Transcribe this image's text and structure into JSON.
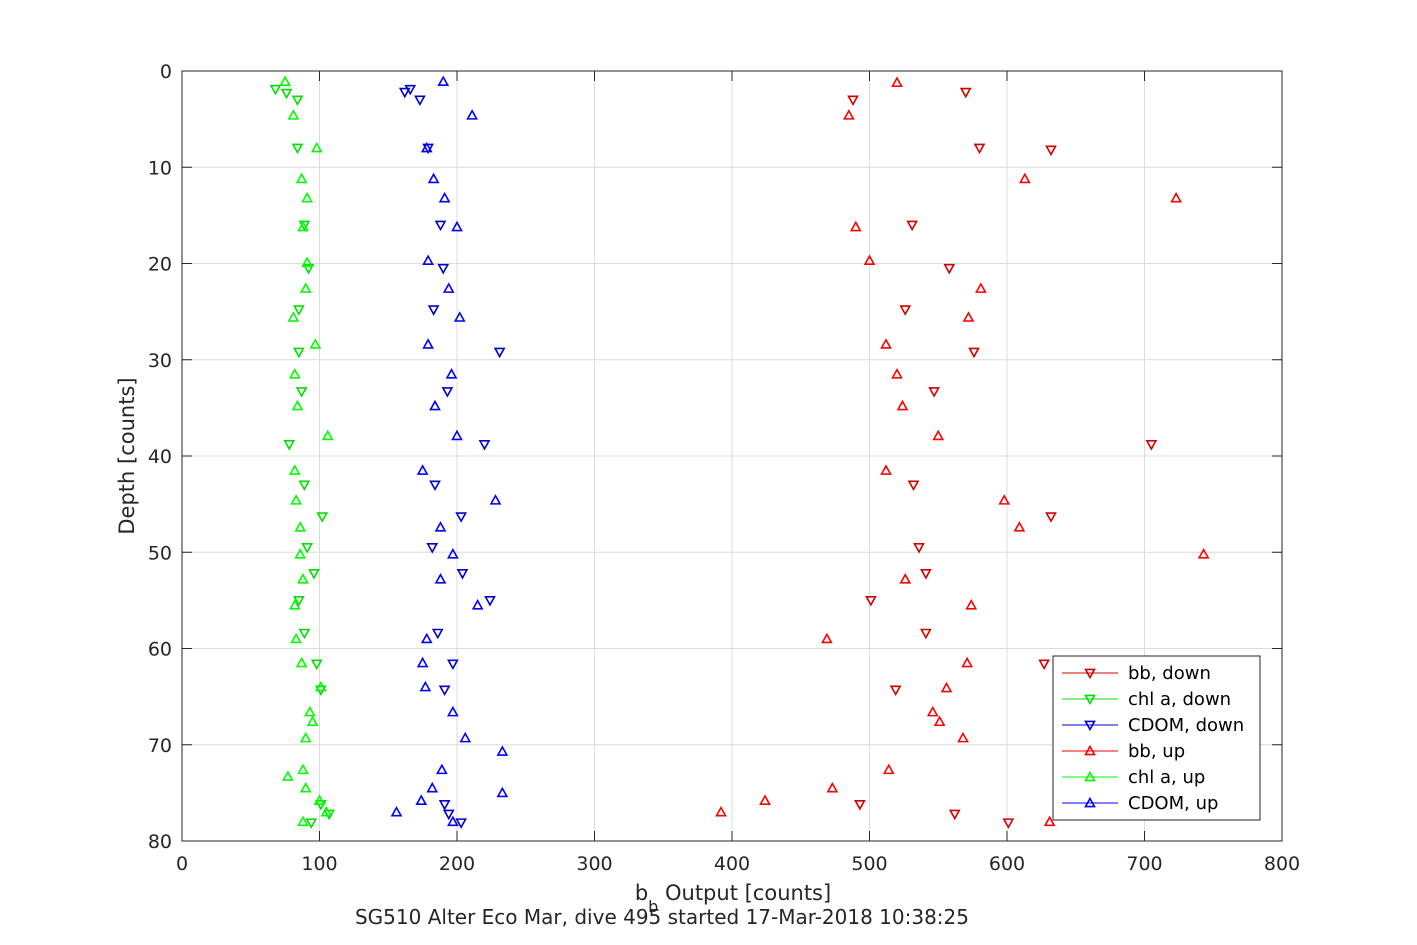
{
  "chart_data": {
    "type": "scatter",
    "title": "",
    "caption": "SG510 Alter Eco Mar, dive 495 started 17-Mar-2018 10:38:25",
    "xlabel_main": "b",
    "xlabel_sub": "b",
    "xlabel_rest": " Output [counts]",
    "ylabel": "Depth [counts]",
    "xlim": [
      0,
      800
    ],
    "ylim": [
      0,
      80
    ],
    "y_reversed": true,
    "grid": true,
    "legend_position": "bottom-right",
    "x_ticks": [
      "0",
      "100",
      "200",
      "300",
      "400",
      "500",
      "600",
      "700",
      "800"
    ],
    "y_ticks": [
      "0",
      "10",
      "20",
      "30",
      "40",
      "50",
      "60",
      "70",
      "80"
    ],
    "series": [
      {
        "name": "bb, down",
        "color": "#d40000",
        "marker": "triangle-down",
        "points": [
          [
            488,
            3
          ],
          [
            570,
            2.2
          ],
          [
            632,
            8.2
          ],
          [
            580,
            8
          ],
          [
            531,
            16
          ],
          [
            558,
            20.5
          ],
          [
            526,
            24.8
          ],
          [
            576,
            29.2
          ],
          [
            547,
            33.3
          ],
          [
            705,
            38.8
          ],
          [
            532,
            43
          ],
          [
            632,
            46.3
          ],
          [
            536,
            49.5
          ],
          [
            541,
            52.2
          ],
          [
            501,
            55
          ],
          [
            541,
            58.4
          ],
          [
            627,
            61.6
          ],
          [
            519,
            64.3
          ],
          [
            493,
            76.2
          ],
          [
            562,
            77.2
          ],
          [
            601,
            78.1
          ]
        ]
      },
      {
        "name": "chl a, down",
        "color": "#00e000",
        "marker": "triangle-down",
        "points": [
          [
            68,
            1.9
          ],
          [
            76,
            2.3
          ],
          [
            84,
            3
          ],
          [
            84,
            8
          ],
          [
            89,
            16
          ],
          [
            92,
            20.5
          ],
          [
            85,
            24.8
          ],
          [
            85,
            29.2
          ],
          [
            87,
            33.3
          ],
          [
            78,
            38.8
          ],
          [
            89,
            43
          ],
          [
            102,
            46.3
          ],
          [
            91,
            49.5
          ],
          [
            96,
            52.2
          ],
          [
            85,
            55
          ],
          [
            89,
            58.4
          ],
          [
            98,
            61.6
          ],
          [
            101,
            64.3
          ],
          [
            101,
            76.2
          ],
          [
            107,
            77.2
          ],
          [
            94,
            78.1
          ]
        ]
      },
      {
        "name": "CDOM, down",
        "color": "#0000d0",
        "marker": "triangle-down",
        "points": [
          [
            162,
            2.2
          ],
          [
            166,
            1.9
          ],
          [
            173,
            3
          ],
          [
            179,
            8
          ],
          [
            188,
            16
          ],
          [
            190,
            20.5
          ],
          [
            183,
            24.8
          ],
          [
            231,
            29.2
          ],
          [
            193,
            33.3
          ],
          [
            220,
            38.8
          ],
          [
            184,
            43
          ],
          [
            203,
            46.3
          ],
          [
            182,
            49.5
          ],
          [
            204,
            52.2
          ],
          [
            224,
            55
          ],
          [
            186,
            58.4
          ],
          [
            197,
            61.6
          ],
          [
            191,
            64.3
          ],
          [
            191,
            76.2
          ],
          [
            194,
            77.2
          ],
          [
            203,
            78.1
          ]
        ]
      },
      {
        "name": "bb, up",
        "color": "#ff0000",
        "marker": "triangle-up",
        "points": [
          [
            520,
            1.2
          ],
          [
            485,
            4.6
          ],
          [
            613,
            11.2
          ],
          [
            723,
            13.2
          ],
          [
            490,
            16.2
          ],
          [
            500,
            19.7
          ],
          [
            581,
            22.6
          ],
          [
            572,
            25.6
          ],
          [
            512,
            28.4
          ],
          [
            520,
            31.5
          ],
          [
            524,
            34.8
          ],
          [
            550,
            37.9
          ],
          [
            512,
            41.5
          ],
          [
            598,
            44.6
          ],
          [
            609,
            47.4
          ],
          [
            743,
            50.2
          ],
          [
            526,
            52.8
          ],
          [
            574,
            55.5
          ],
          [
            469,
            59
          ],
          [
            571,
            61.5
          ],
          [
            556,
            64.1
          ],
          [
            546,
            66.6
          ],
          [
            551,
            67.6
          ],
          [
            568,
            69.3
          ],
          [
            514,
            72.6
          ],
          [
            473,
            74.5
          ],
          [
            424,
            75.8
          ],
          [
            392,
            77
          ],
          [
            631,
            78
          ]
        ]
      },
      {
        "name": "chl a, up",
        "color": "#00ff00",
        "marker": "triangle-up",
        "points": [
          [
            75,
            1.1
          ],
          [
            81,
            4.6
          ],
          [
            98,
            8
          ],
          [
            87,
            11.2
          ],
          [
            91,
            13.2
          ],
          [
            88,
            16.2
          ],
          [
            91,
            19.9
          ],
          [
            90,
            22.6
          ],
          [
            81,
            25.6
          ],
          [
            97,
            28.4
          ],
          [
            82,
            31.5
          ],
          [
            84,
            34.8
          ],
          [
            106,
            37.9
          ],
          [
            82,
            41.5
          ],
          [
            83,
            44.6
          ],
          [
            86,
            47.4
          ],
          [
            86,
            50.2
          ],
          [
            88,
            52.8
          ],
          [
            82,
            55.5
          ],
          [
            83,
            59
          ],
          [
            87,
            61.5
          ],
          [
            101,
            64
          ],
          [
            93,
            66.6
          ],
          [
            95,
            67.6
          ],
          [
            90,
            69.3
          ],
          [
            88,
            72.6
          ],
          [
            77,
            73.3
          ],
          [
            90,
            74.5
          ],
          [
            100,
            75.8
          ],
          [
            105,
            77
          ],
          [
            88,
            78
          ]
        ]
      },
      {
        "name": "CDOM, up",
        "color": "#0000ff",
        "marker": "triangle-up",
        "points": [
          [
            190,
            1.1
          ],
          [
            211,
            4.6
          ],
          [
            178,
            8
          ],
          [
            183,
            11.2
          ],
          [
            191,
            13.2
          ],
          [
            200,
            16.2
          ],
          [
            179,
            19.7
          ],
          [
            194,
            22.6
          ],
          [
            202,
            25.6
          ],
          [
            179,
            28.4
          ],
          [
            196,
            31.5
          ],
          [
            184,
            34.8
          ],
          [
            200,
            37.9
          ],
          [
            175,
            41.5
          ],
          [
            228,
            44.6
          ],
          [
            188,
            47.4
          ],
          [
            197,
            50.2
          ],
          [
            188,
            52.8
          ],
          [
            215,
            55.5
          ],
          [
            178,
            59
          ],
          [
            175,
            61.5
          ],
          [
            177,
            64
          ],
          [
            197,
            66.6
          ],
          [
            206,
            69.3
          ],
          [
            189,
            72.6
          ],
          [
            182,
            74.5
          ],
          [
            174,
            75.8
          ],
          [
            156,
            77
          ],
          [
            197,
            78
          ],
          [
            233,
            70.7
          ],
          [
            233,
            75
          ]
        ]
      }
    ]
  }
}
